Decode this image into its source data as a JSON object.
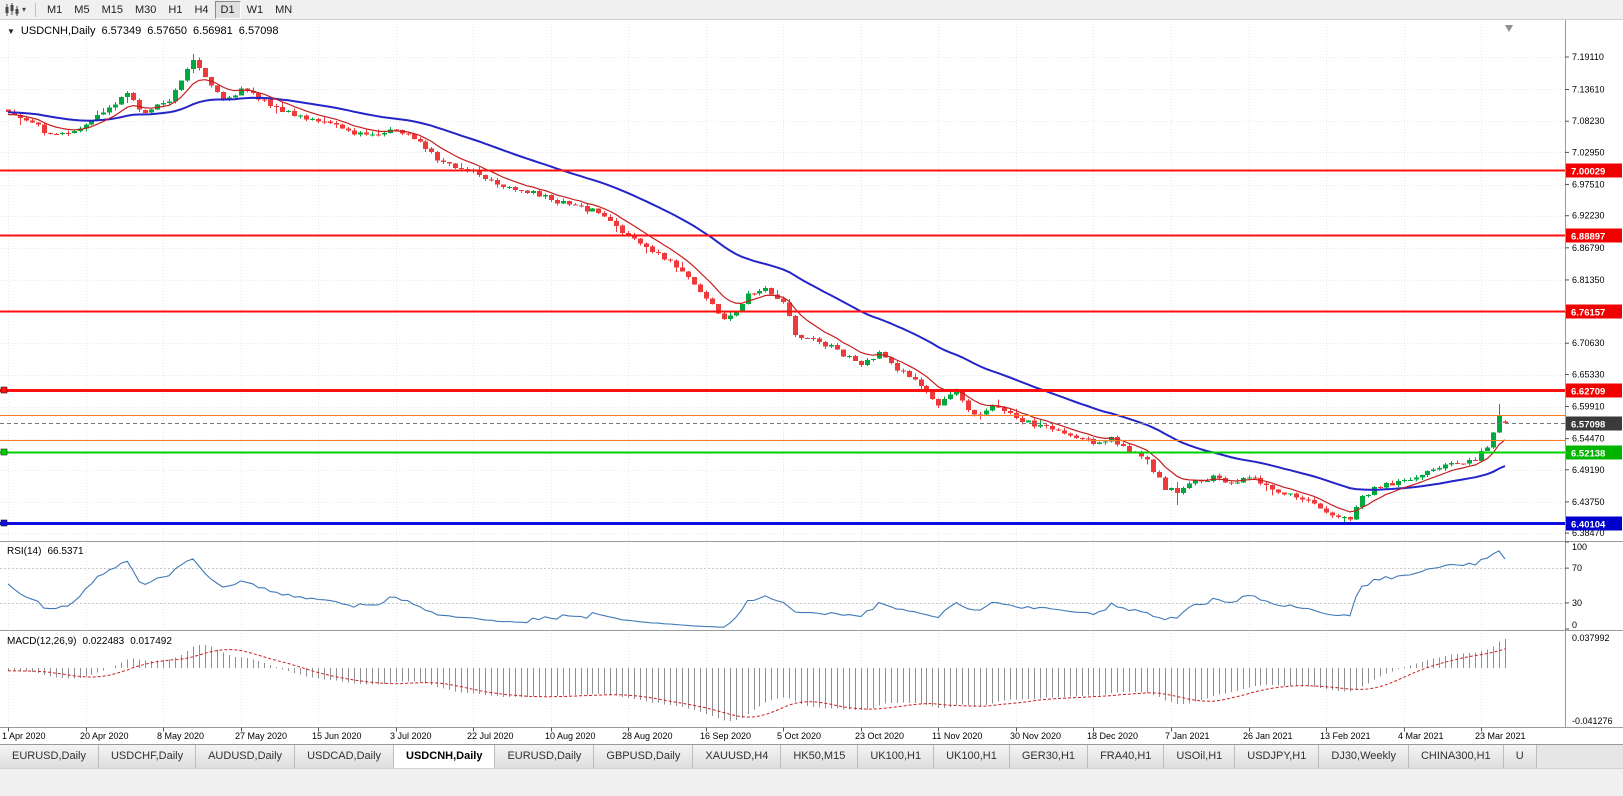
{
  "toolbar": {
    "timeframes": [
      "M1",
      "M5",
      "M15",
      "M30",
      "H1",
      "H4",
      "D1",
      "W1",
      "MN"
    ],
    "active_timeframe": "D1"
  },
  "chart": {
    "symbol_period": "USDCNH,Daily",
    "open": "6.57349",
    "high": "6.57650",
    "low": "6.56981",
    "close": "6.57098"
  },
  "indicators": {
    "rsi": {
      "name": "RSI(14)",
      "value": "66.5371",
      "axis_labels": [
        "100",
        "70",
        "30",
        "0"
      ]
    },
    "macd": {
      "name": "MACD(12,26,9)",
      "value_main": "0.022483",
      "value_signal": "0.017492",
      "axis_top": "0.037992",
      "axis_bottom": "-0.041276"
    }
  },
  "tabs": {
    "active_index": 4,
    "items": [
      "EURUSD,Daily",
      "USDCHF,Daily",
      "AUDUSD,Daily",
      "USDCAD,Daily",
      "USDCNH,Daily",
      "EURUSD,Daily",
      "GBPUSD,Daily",
      "XAUUSD,H4",
      "HK50,M15",
      "UK100,H1",
      "UK100,H1",
      "GER30,H1",
      "FRA40,H1",
      "USOil,H1",
      "USDJPY,H1",
      "DJ30,Weekly",
      "CHINA300,H1",
      "U"
    ]
  },
  "chart_data": {
    "type": "candlestick",
    "symbol": "USDCNH",
    "period": "Daily",
    "num_candles": 252,
    "candles_per_label": 13,
    "x_labels": [
      "1 Apr 2020",
      "20 Apr 2020",
      "8 May 2020",
      "27 May 2020",
      "15 Jun 2020",
      "3 Jul 2020",
      "22 Jul 2020",
      "10 Aug 2020",
      "28 Aug 2020",
      "16 Sep 2020",
      "5 Oct 2020",
      "23 Oct 2020",
      "11 Nov 2020",
      "30 Nov 2020",
      "18 Dec 2020",
      "7 Jan 2021",
      "26 Jan 2021",
      "13 Feb 2021",
      "4 Mar 2021",
      "23 Mar 2021"
    ],
    "price_axis": {
      "min": 6.373,
      "max": 7.247,
      "ticks": [
        "7.19110",
        "7.13610",
        "7.08230",
        "7.02950",
        "6.97510",
        "6.92230",
        "6.86790",
        "6.81350",
        "6.75910",
        "6.70630",
        "6.65330",
        "6.59910",
        "6.54470",
        "6.49190",
        "6.43750",
        "6.38470"
      ]
    },
    "last_candle": {
      "open": 6.57349,
      "high": 6.5765,
      "low": 6.56981,
      "close": 6.57098
    },
    "current_price": {
      "value": 6.57098,
      "label": "6.57098"
    },
    "hlines": [
      {
        "price": 7.00029,
        "label": "7.00029",
        "color": "#ff0f0f",
        "badge_bg": "#f00000",
        "width": 2
      },
      {
        "price": 6.88897,
        "label": "6.88897",
        "color": "#ff0f0f",
        "badge_bg": "#f00000",
        "width": 2
      },
      {
        "price": 6.76157,
        "label": "6.76157",
        "color": "#ff0f0f",
        "badge_bg": "#f00000",
        "width": 2
      },
      {
        "price": 6.62709,
        "label": "6.62709",
        "color": "#ff0f0f",
        "badge_bg": "#f00000",
        "width": 3,
        "handle": true
      },
      {
        "price": 6.5855,
        "color": "#ff7a1e",
        "width": 1
      },
      {
        "price": 6.543,
        "color": "#ff7a1e",
        "width": 1
      },
      {
        "price": 6.52138,
        "label": "6.52138",
        "color": "#00d000",
        "badge_bg": "#00b400",
        "width": 2,
        "handle": true
      },
      {
        "price": 6.40104,
        "label": "6.40104",
        "color": "#0d0de0",
        "badge_bg": "#0000cc",
        "width": 3,
        "handle": true
      }
    ],
    "trend_waypoints": [
      [
        0,
        7.1
      ],
      [
        4,
        7.082
      ],
      [
        7,
        7.058
      ],
      [
        13,
        7.075
      ],
      [
        17,
        7.105
      ],
      [
        20,
        7.128
      ],
      [
        23,
        7.095
      ],
      [
        27,
        7.12
      ],
      [
        31,
        7.188
      ],
      [
        33,
        7.16
      ],
      [
        36,
        7.12
      ],
      [
        39,
        7.135
      ],
      [
        43,
        7.118
      ],
      [
        47,
        7.095
      ],
      [
        52,
        7.085
      ],
      [
        56,
        7.068
      ],
      [
        60,
        7.06
      ],
      [
        65,
        7.068
      ],
      [
        69,
        7.05
      ],
      [
        73,
        7.01
      ],
      [
        78,
        6.998
      ],
      [
        82,
        6.978
      ],
      [
        86,
        6.966
      ],
      [
        91,
        6.95
      ],
      [
        95,
        6.938
      ],
      [
        99,
        6.928
      ],
      [
        102,
        6.905
      ],
      [
        104,
        6.888
      ],
      [
        108,
        6.862
      ],
      [
        112,
        6.838
      ],
      [
        115,
        6.808
      ],
      [
        117,
        6.782
      ],
      [
        120,
        6.748
      ],
      [
        122,
        6.758
      ],
      [
        124,
        6.792
      ],
      [
        127,
        6.8
      ],
      [
        130,
        6.778
      ],
      [
        132,
        6.722
      ],
      [
        135,
        6.712
      ],
      [
        138,
        6.7
      ],
      [
        141,
        6.682
      ],
      [
        143,
        6.668
      ],
      [
        146,
        6.688
      ],
      [
        149,
        6.664
      ],
      [
        152,
        6.644
      ],
      [
        156,
        6.602
      ],
      [
        159,
        6.622
      ],
      [
        162,
        6.585
      ],
      [
        165,
        6.6
      ],
      [
        169,
        6.578
      ],
      [
        172,
        6.568
      ],
      [
        175,
        6.562
      ],
      [
        178,
        6.548
      ],
      [
        182,
        6.538
      ],
      [
        185,
        6.545
      ],
      [
        188,
        6.525
      ],
      [
        191,
        6.505
      ],
      [
        194,
        6.462
      ],
      [
        196,
        6.452
      ],
      [
        199,
        6.472
      ],
      [
        202,
        6.478
      ],
      [
        205,
        6.47
      ],
      [
        208,
        6.482
      ],
      [
        211,
        6.465
      ],
      [
        214,
        6.452
      ],
      [
        217,
        6.442
      ],
      [
        220,
        6.425
      ],
      [
        223,
        6.408
      ],
      [
        225,
        6.412
      ],
      [
        227,
        6.448
      ],
      [
        230,
        6.465
      ],
      [
        233,
        6.472
      ],
      [
        236,
        6.478
      ],
      [
        239,
        6.492
      ],
      [
        242,
        6.505
      ],
      [
        244,
        6.502
      ],
      [
        246,
        6.51
      ],
      [
        248,
        6.532
      ],
      [
        249,
        6.552
      ],
      [
        250,
        6.586
      ],
      [
        251,
        6.571
      ]
    ],
    "spikes": [
      {
        "index": 31,
        "high": 7.196
      },
      {
        "index": 121,
        "high": 6.761
      },
      {
        "index": 196,
        "low": 6.432
      },
      {
        "index": 224,
        "low": 6.4012
      },
      {
        "index": 250,
        "high": 6.603
      }
    ],
    "ma_fast_period": 8,
    "ma_slow_period": 34,
    "rsi_period": 14,
    "macd_params": {
      "fast": 12,
      "slow": 26,
      "signal": 9
    },
    "colors": {
      "up": "#00a83e",
      "down": "#ee3a3a",
      "ma_fast": "#c41e1e",
      "ma_slow": "#2424c8",
      "rsi": "#4079b8",
      "macd_hist": "#8f8f8f",
      "macd_signal": "#cc2020",
      "grid": "#e7e7e7"
    }
  }
}
